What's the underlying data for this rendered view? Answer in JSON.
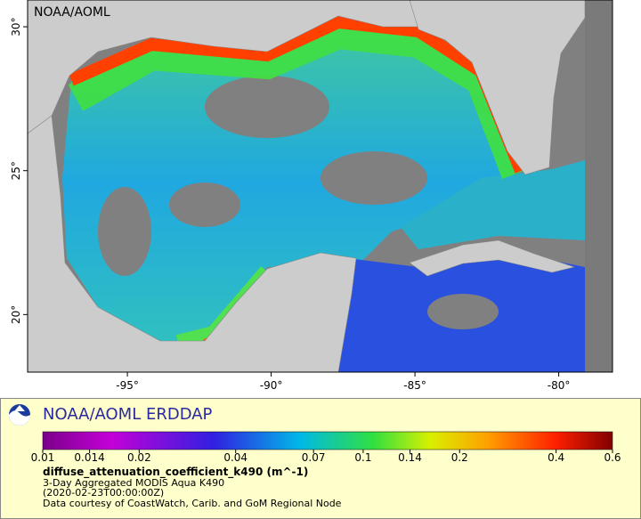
{
  "map": {
    "watermark": "NOAA/AOML",
    "lonlim": [
      -98.47,
      -78.13
    ],
    "latlim": [
      18.0,
      30.93
    ],
    "lon_ticks": [
      {
        "value": -95,
        "label": "-95°"
      },
      {
        "value": -90,
        "label": "-90°"
      },
      {
        "value": -85,
        "label": "-85°"
      },
      {
        "value": -80,
        "label": "-80°"
      }
    ],
    "lat_ticks": [
      {
        "value": 20,
        "label": "20°"
      },
      {
        "value": 25,
        "label": "25°"
      },
      {
        "value": 30,
        "label": "30°"
      }
    ]
  },
  "legend": {
    "title": "NOAA/AOML ERDDAP",
    "colorbar": {
      "lim": [
        0.01,
        0.6
      ],
      "log": true,
      "ticks": [
        0.01,
        0.014,
        0.02,
        0.04,
        0.07,
        0.1,
        0.14,
        0.2,
        0.4,
        0.6
      ]
    },
    "variable": "diffuse_attenuation_coefficient_k490 (m^-1)",
    "lines": [
      "3-Day Aggregated MODIS Aqua K490",
      "(2020-02-23T00:00:00Z)",
      "Data courtesy of CoastWatch, Carib. and GoM Regional Node"
    ]
  }
}
